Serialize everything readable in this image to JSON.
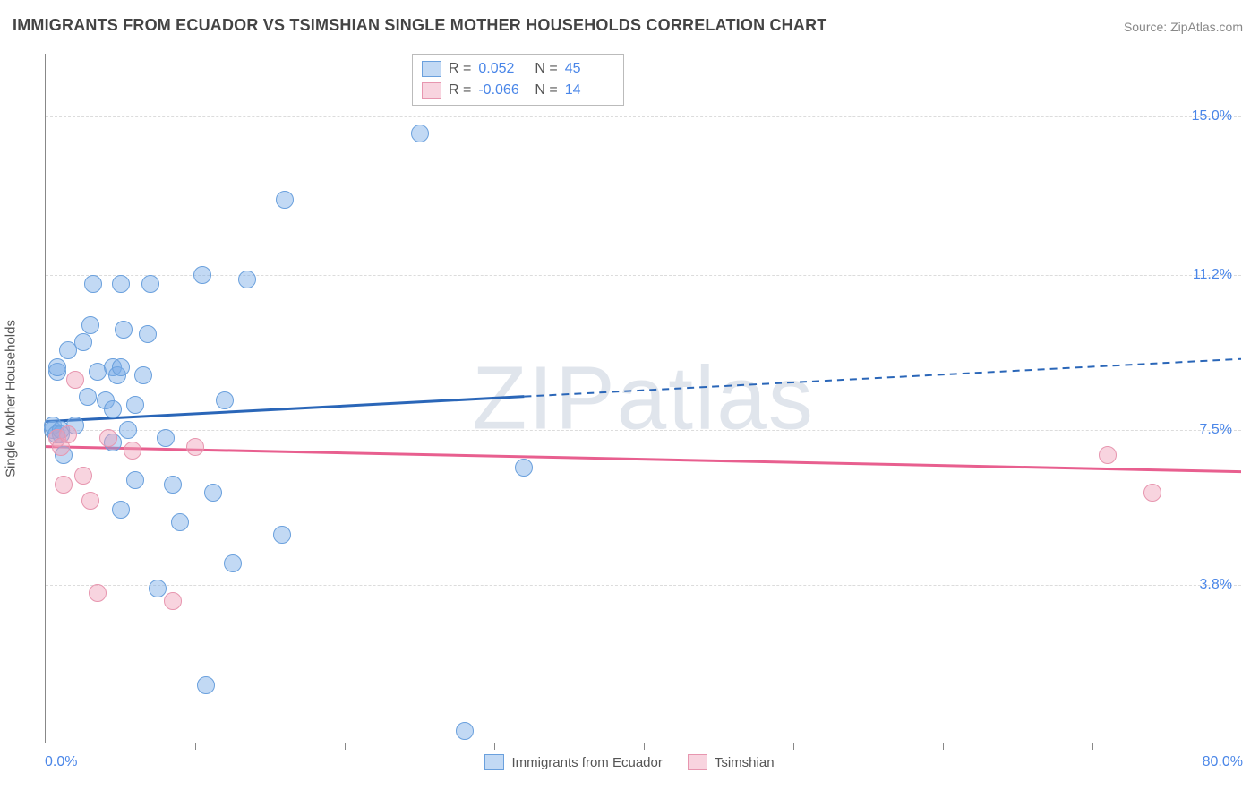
{
  "title": "IMMIGRANTS FROM ECUADOR VS TSIMSHIAN SINGLE MOTHER HOUSEHOLDS CORRELATION CHART",
  "source": "Source: ZipAtlas.com",
  "watermark": "ZIPatlas",
  "y_axis_label": "Single Mother Households",
  "chart": {
    "type": "scatter",
    "background_color": "#ffffff",
    "grid_color": "#dcdcdc",
    "grid_dash": "4,4",
    "xlim": [
      0,
      80
    ],
    "ylim": [
      0,
      16.5
    ],
    "x_min_label": "0.0%",
    "x_max_label": "80.0%",
    "x_tick_positions": [
      10,
      20,
      30,
      40,
      50,
      60,
      70
    ],
    "y_gridlines": [
      {
        "value": 3.8,
        "label": "3.8%"
      },
      {
        "value": 7.5,
        "label": "7.5%"
      },
      {
        "value": 11.2,
        "label": "11.2%"
      },
      {
        "value": 15.0,
        "label": "15.0%"
      }
    ],
    "axis_label_color": "#4a86e8",
    "axis_label_fontsize": 16,
    "marker_radius": 10,
    "marker_border_width": 1.5,
    "series": [
      {
        "name": "Immigrants from Ecuador",
        "fill_color": "rgba(120,170,230,0.45)",
        "border_color": "#6aa0dd",
        "trend_color": "#2a66b8",
        "trend_width": 3,
        "R": "0.052",
        "N": "45",
        "trend": {
          "y_at_x0": 7.7,
          "y_at_x80": 9.2,
          "solid_until_x": 32
        },
        "points": [
          [
            0.5,
            7.5
          ],
          [
            0.5,
            7.6
          ],
          [
            0.7,
            7.4
          ],
          [
            0.8,
            8.9
          ],
          [
            0.8,
            9.0
          ],
          [
            1.0,
            7.4
          ],
          [
            1.0,
            7.5
          ],
          [
            1.2,
            6.9
          ],
          [
            1.5,
            9.4
          ],
          [
            2.0,
            7.6
          ],
          [
            2.5,
            9.6
          ],
          [
            2.8,
            8.3
          ],
          [
            3.0,
            10.0
          ],
          [
            3.2,
            11.0
          ],
          [
            3.5,
            8.9
          ],
          [
            4.0,
            8.2
          ],
          [
            4.5,
            9.0
          ],
          [
            4.5,
            7.2
          ],
          [
            4.5,
            8.0
          ],
          [
            4.8,
            8.8
          ],
          [
            5.0,
            9.0
          ],
          [
            5.0,
            5.6
          ],
          [
            5.0,
            11.0
          ],
          [
            5.2,
            9.9
          ],
          [
            5.5,
            7.5
          ],
          [
            6.0,
            6.3
          ],
          [
            6.0,
            8.1
          ],
          [
            6.5,
            8.8
          ],
          [
            6.8,
            9.8
          ],
          [
            7.0,
            11.0
          ],
          [
            7.5,
            3.7
          ],
          [
            8.0,
            7.3
          ],
          [
            8.5,
            6.2
          ],
          [
            9.0,
            5.3
          ],
          [
            10.5,
            11.2
          ],
          [
            10.7,
            1.4
          ],
          [
            11.2,
            6.0
          ],
          [
            12.0,
            8.2
          ],
          [
            12.5,
            4.3
          ],
          [
            13.5,
            11.1
          ],
          [
            15.8,
            5.0
          ],
          [
            16.0,
            13.0
          ],
          [
            25.0,
            14.6
          ],
          [
            28.0,
            0.3
          ],
          [
            32.0,
            6.6
          ]
        ]
      },
      {
        "name": "Tsimshian",
        "fill_color": "rgba(240,160,185,0.45)",
        "border_color": "#e796af",
        "trend_color": "#e85f8f",
        "trend_width": 3,
        "R": "-0.066",
        "N": "14",
        "trend": {
          "y_at_x0": 7.1,
          "y_at_x80": 6.5,
          "solid_until_x": 80
        },
        "points": [
          [
            0.8,
            7.3
          ],
          [
            1.0,
            7.1
          ],
          [
            1.2,
            6.2
          ],
          [
            1.5,
            7.4
          ],
          [
            2.0,
            8.7
          ],
          [
            2.5,
            6.4
          ],
          [
            3.0,
            5.8
          ],
          [
            3.5,
            3.6
          ],
          [
            4.2,
            7.3
          ],
          [
            5.8,
            7.0
          ],
          [
            8.5,
            3.4
          ],
          [
            10.0,
            7.1
          ],
          [
            71.0,
            6.9
          ],
          [
            74.0,
            6.0
          ]
        ]
      }
    ]
  },
  "legend_bottom": [
    {
      "label": "Immigrants from Ecuador",
      "series_index": 0
    },
    {
      "label": "Tsimshian",
      "series_index": 1
    }
  ]
}
